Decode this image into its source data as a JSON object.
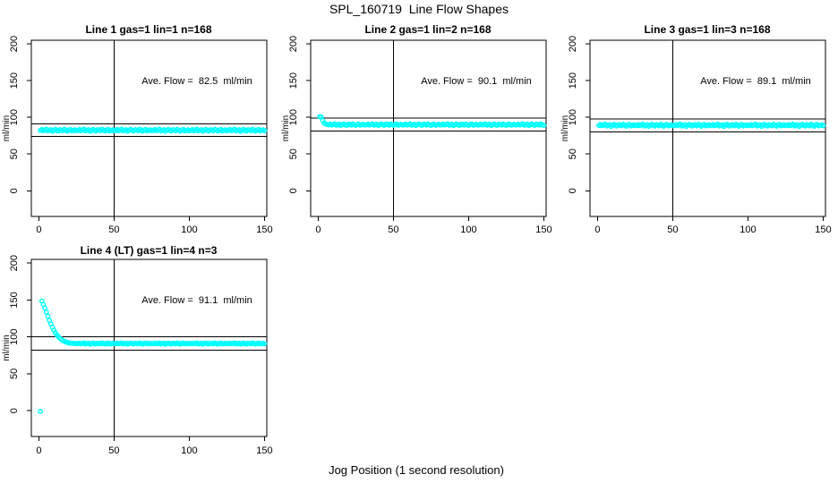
{
  "page": {
    "title": "SPL_160719  Line Flow Shapes",
    "x_axis_label": "Jog Position (1 second resolution)"
  },
  "colors": {
    "points": "#00ffff",
    "lines": "#000000",
    "text": "#000000",
    "background": "#ffffff"
  },
  "chart_data": [
    {
      "type": "scatter",
      "title": "Line 1 gas=1 lin=1 n=168",
      "annotation": "Ave. Flow =  82.5  ml/min",
      "ave_flow": 82.5,
      "ylabel": "ml/min",
      "x_ticks": [
        0,
        50,
        100,
        150
      ],
      "y_ticks": [
        0,
        50,
        100,
        150,
        200
      ],
      "xlim": [
        -5,
        151.5
      ],
      "ylim": [
        -35,
        205
      ],
      "vline_x": 50,
      "hlines": [
        90.8,
        74.3
      ],
      "x_start": 1,
      "x_step": 1,
      "y": [
        82.1,
        83.4,
        81.9,
        82.8,
        83.9,
        81.5,
        82.4,
        83.1,
        80.9,
        82.6,
        83.6,
        82.0,
        81.4,
        83.2,
        82.7,
        81.8,
        83.8,
        82.3,
        81.2,
        82.9,
        83.5,
        81.6,
        82.2,
        83.0,
        81.9,
        82.1,
        83.4,
        81.9,
        82.8,
        83.9,
        81.5,
        82.4,
        83.1,
        80.9,
        82.6,
        83.6,
        82.0,
        81.4,
        83.2,
        82.7,
        81.8,
        83.8,
        82.3,
        81.2,
        82.9,
        83.5,
        81.6,
        82.2,
        83.0,
        81.9,
        82.1,
        83.4,
        81.9,
        82.8,
        83.9,
        81.5,
        82.4,
        83.1,
        80.9,
        82.6,
        83.6,
        82.0,
        81.4,
        83.2,
        82.7,
        81.8,
        83.8,
        82.3,
        81.2,
        82.9,
        83.5,
        81.6,
        82.2,
        83.0,
        81.9,
        82.1,
        83.4,
        81.9,
        82.8,
        83.9,
        81.5,
        82.4,
        83.1,
        80.9,
        82.6,
        83.6,
        82.0,
        81.4,
        83.2,
        82.7,
        81.8,
        83.8,
        82.3,
        81.2,
        82.9,
        83.5,
        81.6,
        82.2,
        83.0,
        81.9,
        82.1,
        83.4,
        81.9,
        82.8,
        83.9,
        81.5,
        82.4,
        83.1,
        80.9,
        82.6,
        83.6,
        82.0,
        81.4,
        83.2,
        82.7,
        81.8,
        83.8,
        82.3,
        81.2,
        82.9,
        83.5,
        81.6,
        82.2,
        83.0,
        81.9,
        82.1,
        83.4,
        81.9,
        82.8,
        83.9,
        81.5,
        82.4,
        83.1,
        80.9,
        82.6,
        83.6,
        82.0,
        81.4,
        83.2,
        82.7,
        81.8,
        83.8,
        82.3,
        81.2,
        82.9,
        83.5,
        81.6,
        82.2,
        83.0,
        81.9
      ]
    },
    {
      "type": "scatter",
      "title": "Line 2 gas=1 lin=2 n=168",
      "annotation": "Ave. Flow =  90.1  ml/min",
      "ave_flow": 90.1,
      "ylabel": "ml/min",
      "x_ticks": [
        0,
        50,
        100,
        150
      ],
      "y_ticks": [
        0,
        50,
        100,
        150,
        200
      ],
      "xlim": [
        -5,
        151.5
      ],
      "ylim": [
        -35,
        205
      ],
      "vline_x": 50,
      "hlines": [
        99.1,
        81.1
      ],
      "x_start": 1,
      "x_step": 1,
      "y": [
        100.8,
        100.3,
        95.8,
        92.3,
        91.0,
        90.4,
        89.8,
        90.8,
        89.6,
        90.3,
        91.2,
        89.3,
        90.0,
        90.6,
        88.8,
        90.2,
        91.0,
        89.7,
        89.2,
        90.7,
        90.3,
        89.5,
        91.1,
        89.9,
        89.1,
        90.4,
        90.9,
        89.4,
        89.9,
        90.5,
        89.6,
        89.8,
        90.8,
        89.6,
        90.3,
        91.2,
        89.3,
        90.0,
        90.6,
        88.8,
        90.2,
        91.0,
        89.7,
        89.2,
        90.7,
        90.3,
        89.5,
        91.1,
        89.9,
        89.1,
        90.4,
        90.9,
        89.4,
        89.9,
        90.5,
        89.6,
        89.8,
        90.8,
        89.6,
        90.3,
        91.2,
        89.3,
        90.0,
        90.6,
        88.8,
        90.2,
        91.0,
        89.7,
        89.2,
        90.7,
        90.3,
        89.5,
        91.1,
        89.9,
        89.1,
        90.4,
        90.9,
        89.4,
        89.9,
        90.5,
        89.6,
        89.8,
        90.8,
        89.6,
        90.3,
        91.2,
        89.3,
        90.0,
        90.6,
        88.8,
        90.2,
        91.0,
        89.7,
        89.2,
        90.7,
        90.3,
        89.5,
        91.1,
        89.9,
        89.1,
        90.4,
        90.9,
        89.4,
        89.9,
        90.5,
        89.6,
        89.8,
        90.8,
        89.6,
        90.3,
        91.2,
        89.3,
        90.0,
        90.6,
        88.8,
        90.2,
        91.0,
        89.7,
        89.2,
        90.7,
        90.3,
        89.5,
        91.1,
        89.9,
        89.1,
        90.4,
        90.9,
        89.4,
        89.9,
        90.5,
        89.6,
        89.8,
        90.8,
        89.6,
        90.3,
        91.2,
        89.3,
        90.0,
        90.6,
        88.8,
        90.2,
        91.0,
        89.7,
        89.2,
        90.7,
        90.3,
        89.5,
        91.1,
        89.9,
        89.1
      ]
    },
    {
      "type": "scatter",
      "title": "Line 3 gas=1 lin=3 n=168",
      "annotation": "Ave. Flow =  89.1  ml/min",
      "ave_flow": 89.1,
      "ylabel": "ml/min",
      "x_ticks": [
        0,
        50,
        100,
        150
      ],
      "y_ticks": [
        0,
        50,
        100,
        150,
        200
      ],
      "xlim": [
        -5,
        151.5
      ],
      "ylim": [
        -35,
        205
      ],
      "vline_x": 50,
      "hlines": [
        98.0,
        80.2
      ],
      "x_start": 1,
      "x_step": 1,
      "y": [
        88.9,
        90.2,
        88.7,
        89.6,
        90.7,
        88.3,
        89.2,
        89.9,
        87.7,
        89.4,
        90.4,
        88.8,
        88.2,
        90.0,
        89.5,
        88.6,
        90.6,
        89.1,
        88.0,
        89.7,
        90.3,
        88.4,
        89.0,
        89.8,
        88.7,
        88.9,
        90.2,
        88.7,
        89.6,
        90.7,
        88.3,
        89.2,
        89.9,
        87.7,
        89.4,
        90.4,
        88.8,
        88.2,
        90.0,
        89.5,
        88.6,
        90.6,
        89.1,
        88.0,
        89.7,
        90.3,
        88.4,
        89.0,
        89.8,
        88.7,
        88.9,
        90.2,
        88.7,
        89.6,
        90.7,
        88.3,
        89.2,
        89.9,
        87.7,
        89.4,
        90.4,
        88.8,
        88.2,
        90.0,
        89.5,
        88.6,
        90.6,
        89.1,
        88.0,
        89.7,
        90.3,
        88.4,
        89.0,
        89.8,
        88.7,
        88.9,
        90.2,
        88.7,
        89.6,
        90.7,
        88.3,
        89.2,
        89.9,
        87.7,
        89.4,
        90.4,
        88.8,
        88.2,
        90.0,
        89.5,
        88.6,
        90.6,
        89.1,
        88.0,
        89.7,
        90.3,
        88.4,
        89.0,
        89.8,
        88.7,
        88.9,
        90.2,
        88.7,
        89.6,
        90.7,
        88.3,
        89.2,
        89.9,
        87.7,
        89.4,
        90.4,
        88.8,
        88.2,
        90.0,
        89.5,
        88.6,
        90.6,
        89.1,
        88.0,
        89.7,
        90.3,
        88.4,
        89.0,
        89.8,
        88.7,
        88.9,
        90.2,
        88.7,
        89.6,
        90.7,
        88.3,
        89.2,
        89.9,
        87.7,
        89.4,
        90.4,
        88.8,
        88.2,
        90.0,
        89.5,
        88.6,
        90.6,
        89.1,
        88.0,
        89.7,
        90.3,
        88.4,
        89.0,
        89.8,
        88.7
      ]
    },
    {
      "type": "scatter",
      "title": "Line 4 (LT) gas=1 lin=4 n=3",
      "annotation": "Ave. Flow =  91.1  ml/min",
      "ave_flow": 91.1,
      "ylabel": "ml/min",
      "x_ticks": [
        0,
        50,
        100,
        150
      ],
      "y_ticks": [
        0,
        50,
        100,
        150,
        200
      ],
      "xlim": [
        -5,
        151.5
      ],
      "ylim": [
        -35,
        205
      ],
      "vline_x": 50,
      "hlines": [
        100.2,
        82.0
      ],
      "x_start": 1,
      "x_step": 1,
      "y": [
        -1.0,
        148.5,
        144.0,
        139.0,
        133.5,
        128.0,
        122.5,
        117.5,
        113.0,
        109.0,
        105.5,
        102.5,
        100.1,
        98.1,
        96.4,
        95.0,
        93.9,
        93.0,
        92.4,
        91.9,
        91.6,
        91.3,
        91.2,
        91.1,
        91.0,
        90.8,
        91.5,
        90.6,
        91.2,
        91.8,
        90.4,
        90.9,
        91.4,
        90.0,
        91.1,
        91.7,
        90.7,
        90.3,
        91.4,
        91.1,
        90.6,
        91.8,
        90.9,
        90.2,
        91.2,
        91.6,
        90.5,
        90.8,
        91.3,
        90.6,
        90.8,
        91.5,
        90.6,
        91.2,
        91.8,
        90.4,
        90.9,
        91.4,
        90.0,
        91.1,
        91.7,
        90.7,
        90.3,
        91.4,
        91.1,
        90.6,
        91.8,
        90.9,
        90.2,
        91.2,
        91.6,
        90.5,
        90.8,
        91.3,
        90.6,
        90.8,
        91.5,
        90.6,
        91.2,
        91.8,
        90.4,
        90.9,
        91.4,
        90.0,
        91.1,
        91.7,
        90.7,
        90.3,
        91.4,
        91.1,
        90.6,
        91.8,
        90.9,
        90.2,
        91.2,
        91.6,
        90.5,
        90.8,
        91.3,
        90.6,
        90.8,
        91.5,
        90.6,
        91.2,
        91.8,
        90.4,
        90.9,
        91.4,
        90.0,
        91.1,
        91.7,
        90.7,
        90.3,
        91.4,
        91.1,
        90.6,
        91.8,
        90.9,
        90.2,
        91.2,
        91.6,
        90.5,
        90.8,
        91.3,
        90.6,
        90.8,
        91.5,
        90.6,
        91.2,
        91.8,
        90.4,
        90.9,
        91.4,
        90.0,
        91.1,
        91.7,
        90.7,
        90.3,
        91.4,
        91.1,
        90.6,
        91.8,
        90.9,
        90.2,
        91.2,
        91.6,
        90.5,
        90.8,
        91.3,
        90.6
      ]
    }
  ]
}
